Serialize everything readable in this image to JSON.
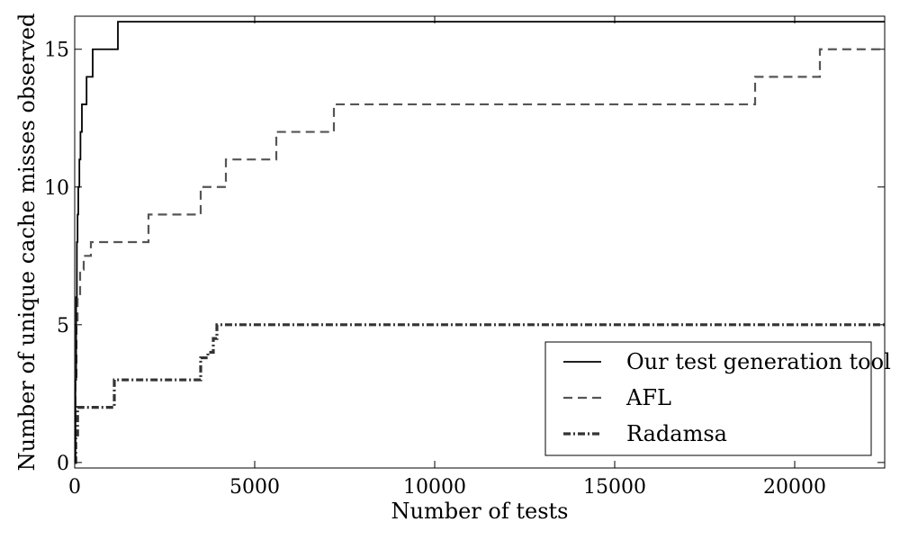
{
  "chart_data": {
    "type": "line",
    "step": true,
    "title": "",
    "xlabel": "Number of tests",
    "ylabel": "Number of unique cache misses observed",
    "xlim": [
      0,
      22500
    ],
    "ylim": [
      -0.2,
      16.2
    ],
    "xticks": [
      0,
      5000,
      10000,
      15000,
      20000
    ],
    "yticks": [
      0,
      5,
      10,
      15
    ],
    "grid": false,
    "legend_position": "lower-right",
    "series": [
      {
        "name": "Our test generation tool",
        "style": "solid",
        "color": "#000000",
        "x": [
          0,
          20,
          40,
          60,
          80,
          100,
          130,
          160,
          200,
          270,
          330,
          500,
          1200,
          22500
        ],
        "y": [
          0,
          3,
          6,
          8,
          9,
          10,
          11,
          12,
          13,
          13,
          14,
          15,
          16,
          16
        ]
      },
      {
        "name": "AFL",
        "style": "dashed",
        "color": "#555555",
        "x": [
          0,
          20,
          50,
          80,
          150,
          250,
          450,
          2050,
          3500,
          4200,
          5600,
          7200,
          18900,
          20700,
          22500
        ],
        "y": [
          0,
          3,
          5,
          6,
          7,
          7.5,
          8,
          9,
          10,
          11,
          12,
          13,
          14,
          15,
          15
        ],
        "x_note": "values continue",
        "steps": [
          [
            0,
            0
          ],
          [
            20,
            3
          ],
          [
            50,
            5
          ],
          [
            80,
            6
          ],
          [
            150,
            7
          ],
          [
            250,
            7.5
          ],
          [
            450,
            8
          ],
          [
            2050,
            9
          ],
          [
            3500,
            10
          ],
          [
            4200,
            11
          ],
          [
            5600,
            12
          ],
          [
            7200,
            13
          ],
          [
            18900,
            14
          ],
          [
            20700,
            15
          ],
          [
            22500,
            15
          ]
        ]
      },
      {
        "name": "Radamsa",
        "style": "dashdot",
        "color": "#333333",
        "x": [
          0,
          30,
          80,
          150,
          1050,
          1100,
          3400,
          3500,
          3700,
          3850,
          3950,
          22500
        ],
        "y": [
          0,
          1,
          2,
          2,
          2,
          3,
          3,
          3.8,
          4,
          4.5,
          5,
          5
        ]
      }
    ]
  }
}
